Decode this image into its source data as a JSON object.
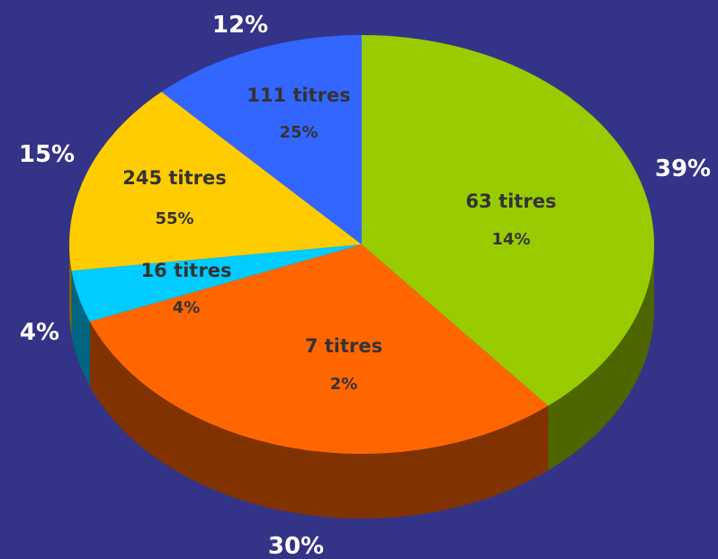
{
  "chart_data": {
    "type": "pie",
    "style": "3d",
    "background": "#333388",
    "slices": [
      {
        "outer_label": "39%",
        "count_label": "63 titres",
        "inner_percent": "14%",
        "value": 39,
        "color": "#99cc00",
        "side_color": "#4d6600"
      },
      {
        "outer_label": "30%",
        "count_label": "7 titres",
        "inner_percent": "2%",
        "value": 30,
        "color": "#ff6600",
        "side_color": "#803300"
      },
      {
        "outer_label": "4%",
        "count_label": "16 titres",
        "inner_percent": "4%",
        "value": 4,
        "color": "#00ccff",
        "side_color": "#006680"
      },
      {
        "outer_label": "15%",
        "count_label": "245 titres",
        "inner_percent": "55%",
        "value": 15,
        "color": "#ffcc00",
        "side_color": "#806600"
      },
      {
        "outer_label": "12%",
        "count_label": "111 titres",
        "inner_percent": "25%",
        "value": 12,
        "color": "#3366ff",
        "side_color": "#1a3380"
      }
    ]
  }
}
